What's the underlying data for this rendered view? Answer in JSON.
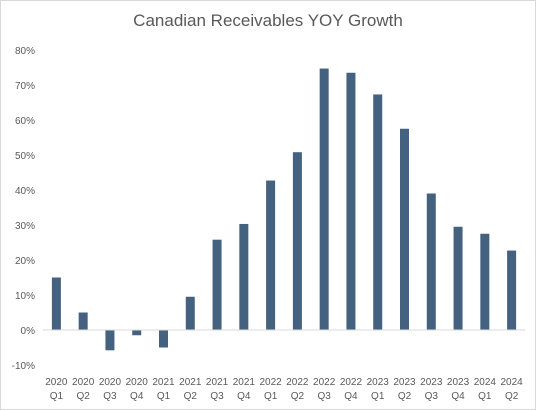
{
  "chart_data": {
    "type": "bar",
    "title": "Canadian Receivables YOY Growth",
    "xlabel": "",
    "ylabel": "",
    "categories": [
      [
        "2020",
        "Q1"
      ],
      [
        "2020",
        "Q2"
      ],
      [
        "2020",
        "Q3"
      ],
      [
        "2020",
        "Q4"
      ],
      [
        "2021",
        "Q1"
      ],
      [
        "2021",
        "Q2"
      ],
      [
        "2021",
        "Q3"
      ],
      [
        "2021",
        "Q4"
      ],
      [
        "2022",
        "Q1"
      ],
      [
        "2022",
        "Q2"
      ],
      [
        "2022",
        "Q3"
      ],
      [
        "2022",
        "Q4"
      ],
      [
        "2023",
        "Q1"
      ],
      [
        "2023",
        "Q2"
      ],
      [
        "2023",
        "Q3"
      ],
      [
        "2023",
        "Q4"
      ],
      [
        "2024",
        "Q1"
      ],
      [
        "2024",
        "Q2"
      ]
    ],
    "values": [
      15.0,
      5.0,
      -5.8,
      -1.5,
      -5.0,
      9.5,
      25.8,
      30.3,
      42.7,
      50.8,
      74.7,
      73.5,
      67.3,
      57.5,
      39.0,
      29.5,
      27.5,
      22.7
    ],
    "ylim": [
      -10,
      80
    ],
    "yticks": [
      -10,
      0,
      10,
      20,
      30,
      40,
      50,
      60,
      70,
      80
    ],
    "ytick_labels": [
      "-10%",
      "0%",
      "10%",
      "20%",
      "30%",
      "40%",
      "50%",
      "60%",
      "70%",
      "80%"
    ],
    "grid": false,
    "legend": "none",
    "bar_color": "#44617f",
    "axis_color": "#d9d9d9"
  }
}
